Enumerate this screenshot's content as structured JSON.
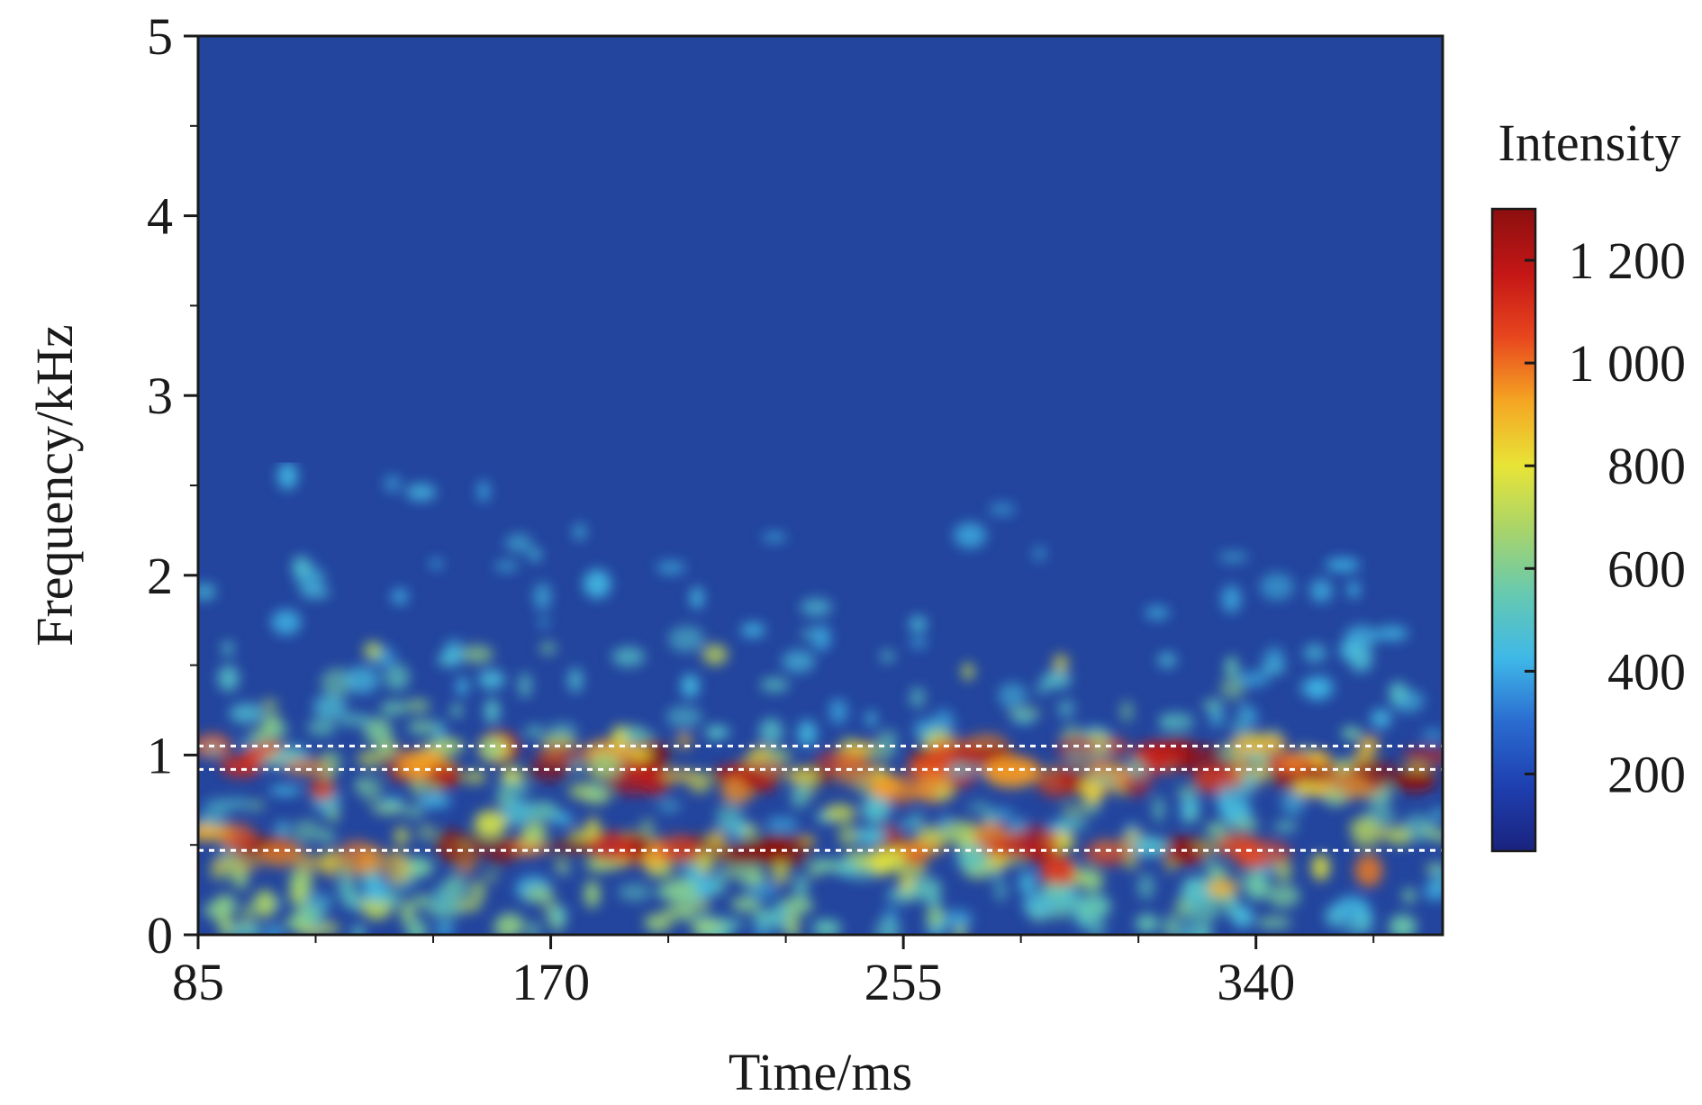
{
  "chart_data": {
    "type": "heatmap",
    "title": "",
    "xlabel": "Time/ms",
    "ylabel": "Frequency/kHz",
    "xlim": [
      85,
      385
    ],
    "ylim": [
      0,
      5
    ],
    "x_ticks": [
      {
        "value": 85,
        "label": "85"
      },
      {
        "value": 170,
        "label": "170"
      },
      {
        "value": 255,
        "label": "255"
      },
      {
        "value": 340,
        "label": "340"
      }
    ],
    "y_ticks": [
      {
        "value": 0,
        "label": "0"
      },
      {
        "value": 1,
        "label": "1"
      },
      {
        "value": 2,
        "label": "2"
      },
      {
        "value": 3,
        "label": "3"
      },
      {
        "value": 4,
        "label": "4"
      },
      {
        "value": 5,
        "label": "5"
      }
    ],
    "colorbar": {
      "title": "Intensity",
      "range": [
        50,
        1300
      ],
      "ticks": [
        {
          "value": 200,
          "label": "200"
        },
        {
          "value": 400,
          "label": "400"
        },
        {
          "value": 600,
          "label": "600"
        },
        {
          "value": 800,
          "label": "800"
        },
        {
          "value": 1000,
          "label": "1 000"
        },
        {
          "value": 1200,
          "label": "1 200"
        }
      ],
      "colors": [
        "#1a237e",
        "#1e3fb0",
        "#2a6bd0",
        "#3fb8e8",
        "#66c9b0",
        "#a8d46a",
        "#e8e437",
        "#f5a623",
        "#e8461e",
        "#c41616",
        "#8b0f0f"
      ]
    },
    "reference_lines_khz": [
      1.05,
      0.92,
      0.47
    ],
    "band_center_khz": [
      1.0,
      0.88,
      0.48
    ],
    "background_color": "#23459e",
    "line_color": "#ffffff"
  }
}
